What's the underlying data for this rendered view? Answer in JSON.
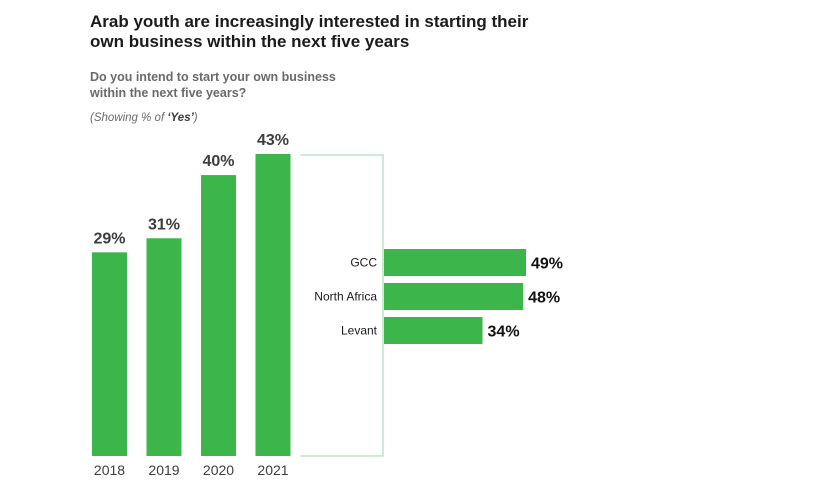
{
  "header": {
    "title": "Arab youth are increasingly interested in starting their own business within the next five years",
    "question": "Do you intend to start your own business within the next five years?",
    "note_prefix": "(Showing % of ",
    "note_emphasis": "‘Yes’",
    "note_suffix": ")"
  },
  "colors": {
    "bar": "#3cb54a",
    "bracket": "#9fd6a6"
  },
  "chart_data": [
    {
      "type": "bar",
      "categories": [
        "2018",
        "2019",
        "2020",
        "2021"
      ],
      "values": [
        29,
        31,
        40,
        43
      ],
      "value_labels": [
        "29%",
        "31%",
        "40%",
        "43%"
      ],
      "ylim": [
        0,
        43
      ]
    },
    {
      "type": "bar",
      "orientation": "horizontal",
      "categories": [
        "GCC",
        "North Africa",
        "Levant"
      ],
      "values": [
        49,
        48,
        34
      ],
      "value_labels": [
        "49%",
        "48%",
        "34%"
      ],
      "xlim": [
        0,
        49
      ]
    }
  ]
}
